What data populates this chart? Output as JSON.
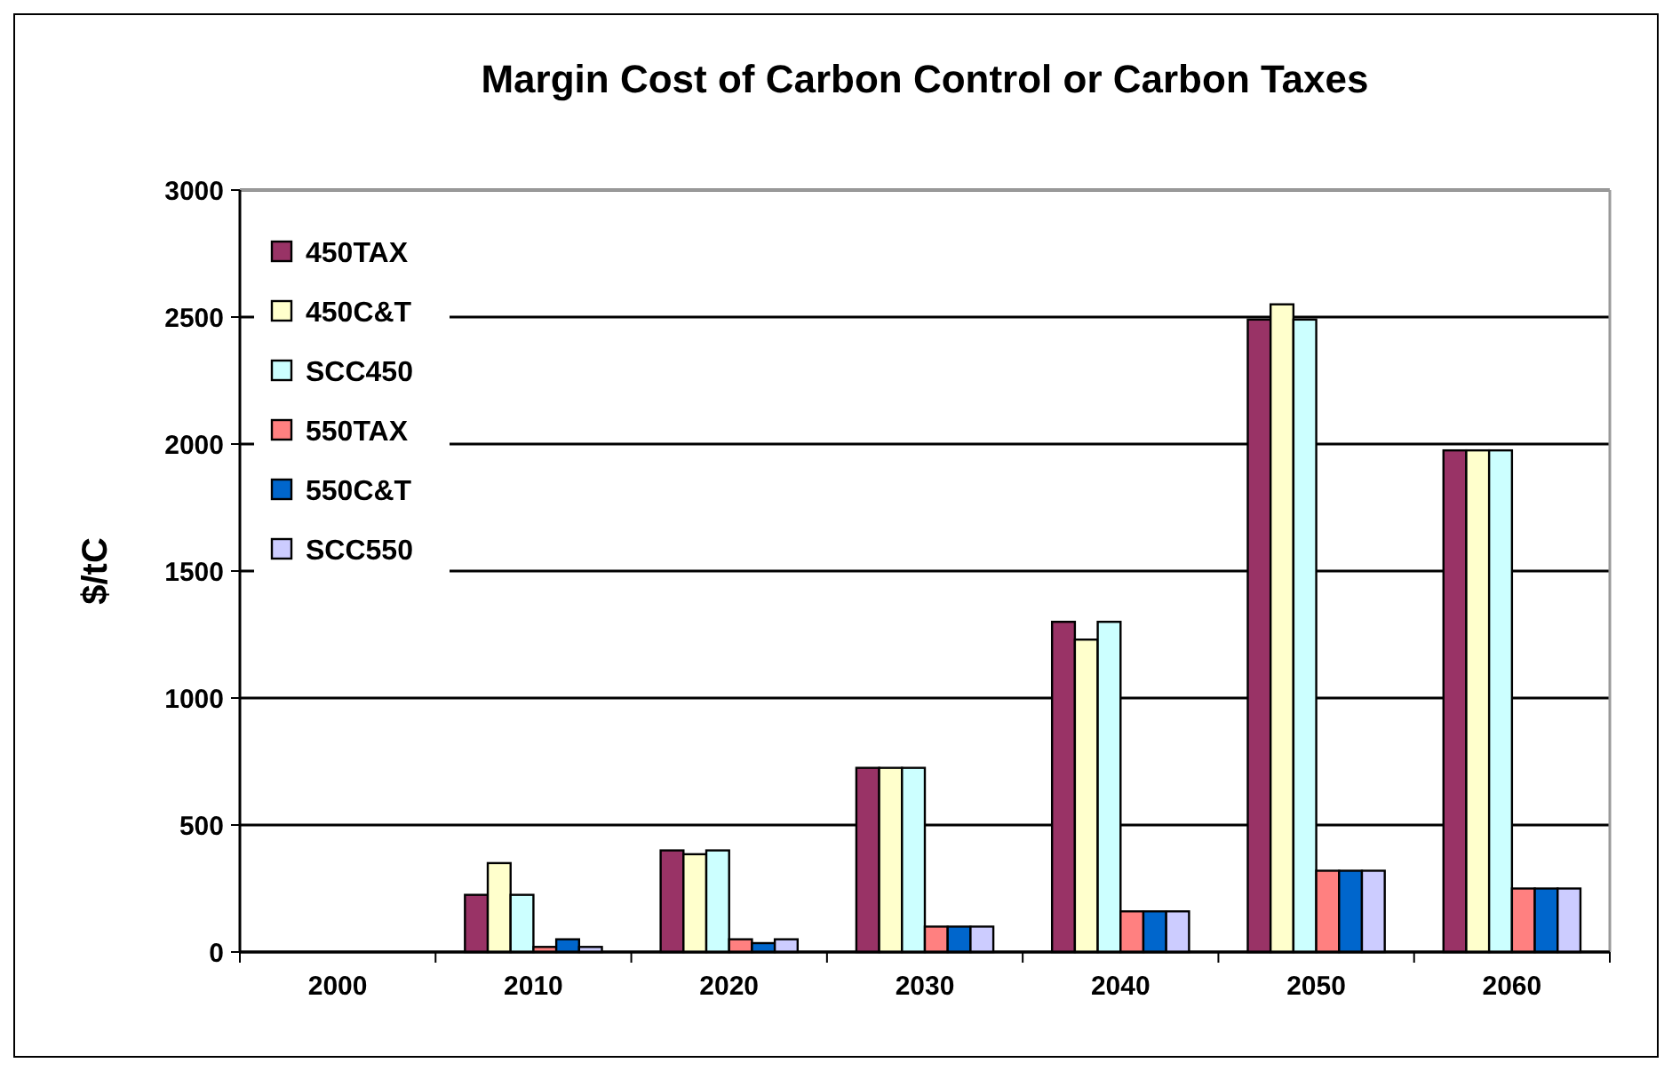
{
  "chart_data": {
    "type": "bar",
    "title": "Margin Cost of Carbon Control or Carbon Taxes",
    "ylabel": "$/tC",
    "categories": [
      "2000",
      "2010",
      "2020",
      "2030",
      "2040",
      "2050",
      "2060"
    ],
    "series": [
      {
        "name": "450TAX",
        "color": "#993366",
        "values": [
          0,
          225,
          400,
          725,
          1300,
          2490,
          1975
        ]
      },
      {
        "name": "450C&T",
        "color": "#ffffcc",
        "values": [
          0,
          350,
          385,
          725,
          1230,
          2550,
          1975
        ]
      },
      {
        "name": "SCC450",
        "color": "#ccffff",
        "values": [
          0,
          225,
          400,
          725,
          1300,
          2490,
          1975
        ]
      },
      {
        "name": "550TAX",
        "color": "#ff8080",
        "values": [
          0,
          20,
          50,
          100,
          160,
          320,
          250
        ]
      },
      {
        "name": "550C&T",
        "color": "#0066cc",
        "values": [
          0,
          50,
          35,
          100,
          160,
          320,
          250
        ]
      },
      {
        "name": "SCC550",
        "color": "#ccccff",
        "values": [
          0,
          20,
          50,
          100,
          160,
          320,
          250
        ]
      }
    ],
    "ylim": [
      0,
      3000
    ],
    "yticks": [
      0,
      500,
      1000,
      1500,
      2000,
      2500,
      3000
    ],
    "grid": "y",
    "legend": "top left"
  }
}
